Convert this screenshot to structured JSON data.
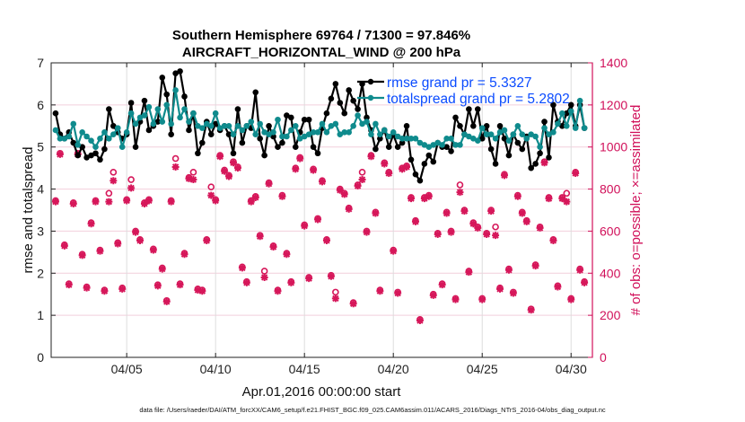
{
  "chart_data": {
    "type": "line",
    "title": [
      "Southern Hemisphere 69764 / 71300 = 97.846%",
      "AIRCRAFT_HORIZONTAL_WIND @ 200 hPa"
    ],
    "xlabel": "Apr.01,2016 00:00:00 start",
    "ylabel": "rmse and totalspread",
    "y2label": "# of obs: o=possible; ×=assimilated",
    "footnote": "data file: /Users/raeder/DAI/ATM_forcXX/CAM6_setup/f.e21.FHIST_BGC.f09_025.CAM6assim.011/ACARS_2016/Diags_NTrS_2016-04/obs_diag_output.nc",
    "xlim_days": [
      -0.25,
      30.2
    ],
    "ylim": [
      0,
      7
    ],
    "y2lim": [
      0,
      1400
    ],
    "x_step_days": 0.25,
    "xticks": [
      {
        "day": 4,
        "label": "04/05"
      },
      {
        "day": 9,
        "label": "04/10"
      },
      {
        "day": 14,
        "label": "04/15"
      },
      {
        "day": 19,
        "label": "04/20"
      },
      {
        "day": 24,
        "label": "04/25"
      },
      {
        "day": 29,
        "label": "04/30"
      }
    ],
    "yticks": [
      "0",
      "1",
      "2",
      "3",
      "4",
      "5",
      "6",
      "7"
    ],
    "y2ticks": [
      "0",
      "200",
      "400",
      "600",
      "800",
      "1000",
      "1200",
      "1400"
    ],
    "grid": true,
    "legend_placement": "top-right",
    "colors": {
      "rmse": "#000000",
      "totalspread": "#0f8b8d",
      "obs": "#d6175a",
      "legend_text": "#0a4bff"
    },
    "series": [
      {
        "name": "rmse grand pr = 5.3327",
        "axis": "left",
        "values": [
          5.8,
          5.3,
          5.2,
          5.35,
          5.1,
          4.8,
          5.0,
          4.75,
          4.8,
          4.85,
          4.7,
          4.95,
          5.9,
          5.5,
          5.35,
          5.2,
          5.3,
          6.05,
          5.0,
          5.6,
          6.1,
          5.4,
          5.5,
          5.6,
          6.65,
          6.25,
          5.3,
          6.75,
          6.8,
          6.2,
          5.4,
          5.8,
          4.85,
          5.1,
          5.6,
          5.3,
          5.55,
          5.4,
          5.5,
          5.3,
          4.85,
          5.9,
          5.1,
          5.5,
          5.45,
          6.3,
          5.2,
          4.8,
          5.5,
          5.25,
          5.0,
          5.1,
          5.75,
          5.7,
          5.0,
          5.35,
          5.65,
          5.65,
          5.0,
          4.85,
          5.45,
          5.8,
          6.15,
          6.5,
          6.05,
          5.8,
          6.35,
          6.1,
          5.9,
          6.5,
          5.7,
          5.4,
          4.95,
          5.2,
          5.4,
          5.0,
          5.3,
          5.0,
          5.1,
          5.5,
          4.7,
          4.35,
          4.2,
          4.6,
          4.8,
          4.65,
          5.1,
          5.0,
          5.0,
          4.9,
          5.7,
          5.5,
          5.3,
          5.9,
          5.5,
          5.9,
          5.2,
          5.5,
          4.95,
          4.6,
          5.5,
          5.2,
          4.8,
          5.3,
          5.1,
          4.95,
          5.25,
          4.5,
          4.6,
          4.85,
          5.6,
          4.75,
          6.0,
          5.6,
          5.5,
          5.8,
          6.0,
          5.5,
          6.0,
          5.45
        ]
      },
      {
        "name": "totalspread grand pr = 5.2802",
        "axis": "left",
        "values": [
          5.4,
          5.2,
          5.2,
          5.25,
          5.55,
          5.05,
          5.35,
          5.25,
          5.15,
          5.0,
          5.2,
          5.35,
          5.2,
          5.3,
          5.45,
          5.0,
          5.35,
          5.8,
          5.55,
          5.7,
          5.75,
          5.95,
          5.55,
          5.9,
          5.6,
          6.0,
          5.55,
          6.35,
          5.7,
          5.9,
          5.6,
          5.8,
          5.5,
          5.45,
          5.55,
          5.5,
          5.8,
          5.45,
          5.5,
          5.5,
          5.3,
          5.5,
          5.4,
          5.5,
          5.6,
          5.3,
          5.55,
          5.35,
          5.3,
          5.35,
          5.65,
          5.25,
          5.25,
          5.4,
          5.5,
          5.2,
          5.25,
          5.3,
          5.35,
          5.35,
          5.55,
          5.35,
          5.5,
          5.55,
          5.3,
          5.35,
          5.35,
          5.5,
          5.75,
          5.55,
          5.6,
          5.3,
          5.55,
          5.3,
          5.4,
          5.25,
          5.35,
          5.25,
          5.2,
          5.2,
          5.2,
          5.2,
          5.1,
          5.05,
          5.0,
          5.05,
          5.1,
          5.05,
          5.2,
          5.2,
          5.05,
          5.05,
          5.3,
          5.25,
          5.2,
          5.15,
          5.45,
          5.3,
          5.3,
          5.2,
          5.35,
          5.4,
          5.15,
          5.3,
          5.5,
          5.3,
          5.2,
          5.3,
          5.25,
          5.0,
          5.45,
          5.3,
          5.35,
          5.55,
          5.8,
          5.5,
          5.85,
          5.45,
          6.1,
          5.45
        ]
      },
      {
        "name": "obs possible",
        "axis": "right",
        "marker": "o",
        "values": [
          745,
          970,
          535,
          350,
          735,
          970,
          490,
          335,
          640,
          745,
          510,
          320,
          780,
          880,
          545,
          330,
          750,
          845,
          600,
          560,
          735,
          750,
          515,
          345,
          425,
          270,
          745,
          945,
          350,
          495,
          855,
          880,
          325,
          320,
          560,
          810,
          750,
          960,
          890,
          865,
          930,
          905,
          430,
          360,
          745,
          765,
          580,
          410,
          830,
          530,
          320,
          770,
          495,
          360,
          900,
          950,
          630,
          380,
          895,
          660,
          840,
          560,
          390,
          310,
          800,
          780,
          710,
          260,
          820,
          880,
          600,
          960,
          690,
          320,
          925,
          880,
          510,
          310,
          900,
          910,
          760,
          650,
          180,
          760,
          770,
          300,
          590,
          350,
          690,
          600,
          280,
          820,
          700,
          410,
          640,
          620,
          280,
          590,
          700,
          620,
          330,
          870,
          420,
          310,
          770,
          690,
          650,
          230,
          440,
          620,
          930,
          760,
          560,
          340,
          760,
          780,
          280,
          880,
          420,
          360
        ]
      },
      {
        "name": "obs assimilated",
        "axis": "right",
        "marker": "*",
        "values": [
          740,
          965,
          530,
          345,
          730,
          965,
          485,
          330,
          635,
          740,
          505,
          315,
          740,
          840,
          540,
          325,
          745,
          805,
          595,
          555,
          730,
          745,
          510,
          340,
          420,
          265,
          740,
          905,
          345,
          490,
          850,
          845,
          320,
          315,
          555,
          770,
          745,
          955,
          885,
          860,
          925,
          900,
          425,
          355,
          740,
          760,
          575,
          380,
          825,
          525,
          315,
          765,
          490,
          355,
          895,
          945,
          625,
          375,
          890,
          655,
          835,
          555,
          385,
          280,
          795,
          775,
          705,
          255,
          815,
          845,
          595,
          955,
          685,
          315,
          920,
          875,
          505,
          305,
          895,
          905,
          755,
          645,
          175,
          755,
          765,
          295,
          585,
          345,
          685,
          595,
          275,
          785,
          695,
          405,
          635,
          615,
          275,
          585,
          695,
          580,
          325,
          865,
          415,
          305,
          765,
          685,
          645,
          225,
          435,
          615,
          925,
          755,
          555,
          335,
          755,
          740,
          275,
          875,
          415,
          355
        ]
      }
    ]
  }
}
